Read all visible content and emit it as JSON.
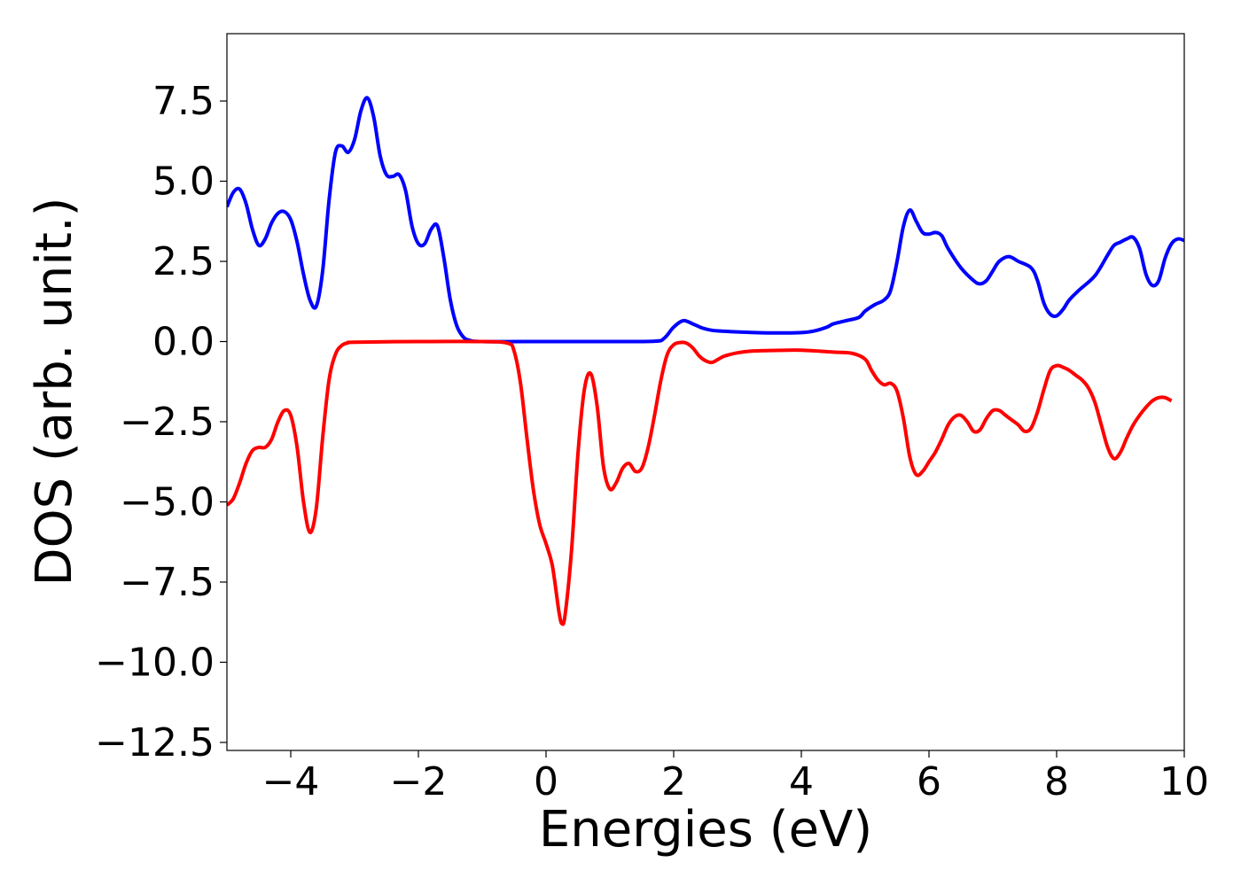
{
  "chart_data": {
    "type": "line",
    "title": "",
    "xlabel": "Energies (eV)",
    "ylabel": "DOS (arb. unit.)",
    "xlim": [
      -5,
      10
    ],
    "ylim": [
      -12.75,
      9.6
    ],
    "xticks": [
      {
        "value": -4,
        "label": "−4"
      },
      {
        "value": -2,
        "label": "−2"
      },
      {
        "value": 0,
        "label": "0"
      },
      {
        "value": 2,
        "label": "2"
      },
      {
        "value": 4,
        "label": "4"
      },
      {
        "value": 6,
        "label": "6"
      },
      {
        "value": 8,
        "label": "8"
      },
      {
        "value": 10,
        "label": "10"
      }
    ],
    "yticks": [
      {
        "value": 7.5,
        "label": "7.5"
      },
      {
        "value": 5.0,
        "label": "5.0"
      },
      {
        "value": 2.5,
        "label": "2.5"
      },
      {
        "value": 0.0,
        "label": "0.0"
      },
      {
        "value": -2.5,
        "label": "−2.5"
      },
      {
        "value": -5.0,
        "label": "−5.0"
      },
      {
        "value": -7.5,
        "label": "−7.5"
      },
      {
        "value": -10.0,
        "label": "−10.0"
      },
      {
        "value": -12.5,
        "label": "−12.5"
      }
    ],
    "grid": false,
    "legend": "none",
    "series": [
      {
        "color": "#0000ff",
        "points": [
          [
            -5.0,
            4.2
          ],
          [
            -4.9,
            4.65
          ],
          [
            -4.8,
            4.75
          ],
          [
            -4.7,
            4.3
          ],
          [
            -4.6,
            3.5
          ],
          [
            -4.5,
            3.0
          ],
          [
            -4.4,
            3.2
          ],
          [
            -4.3,
            3.7
          ],
          [
            -4.2,
            4.0
          ],
          [
            -4.1,
            4.05
          ],
          [
            -4.0,
            3.8
          ],
          [
            -3.9,
            3.1
          ],
          [
            -3.8,
            2.1
          ],
          [
            -3.7,
            1.3
          ],
          [
            -3.6,
            1.1
          ],
          [
            -3.5,
            2.2
          ],
          [
            -3.4,
            4.4
          ],
          [
            -3.3,
            5.9
          ],
          [
            -3.2,
            6.1
          ],
          [
            -3.1,
            5.9
          ],
          [
            -3.0,
            6.3
          ],
          [
            -2.9,
            7.2
          ],
          [
            -2.8,
            7.6
          ],
          [
            -2.7,
            7.0
          ],
          [
            -2.6,
            5.8
          ],
          [
            -2.5,
            5.2
          ],
          [
            -2.4,
            5.15
          ],
          [
            -2.3,
            5.2
          ],
          [
            -2.2,
            4.7
          ],
          [
            -2.1,
            3.6
          ],
          [
            -2.0,
            3.05
          ],
          [
            -1.9,
            3.05
          ],
          [
            -1.8,
            3.5
          ],
          [
            -1.7,
            3.6
          ],
          [
            -1.6,
            2.6
          ],
          [
            -1.5,
            1.3
          ],
          [
            -1.4,
            0.5
          ],
          [
            -1.3,
            0.15
          ],
          [
            -1.2,
            0.04
          ],
          [
            -1.0,
            0.0
          ],
          [
            0.0,
            0.0
          ],
          [
            1.0,
            0.0
          ],
          [
            1.7,
            0.01
          ],
          [
            1.85,
            0.1
          ],
          [
            2.0,
            0.45
          ],
          [
            2.15,
            0.65
          ],
          [
            2.3,
            0.55
          ],
          [
            2.45,
            0.42
          ],
          [
            2.6,
            0.35
          ],
          [
            2.8,
            0.32
          ],
          [
            3.0,
            0.3
          ],
          [
            3.5,
            0.27
          ],
          [
            4.0,
            0.28
          ],
          [
            4.2,
            0.33
          ],
          [
            4.4,
            0.45
          ],
          [
            4.5,
            0.55
          ],
          [
            4.7,
            0.65
          ],
          [
            4.9,
            0.75
          ],
          [
            5.0,
            0.95
          ],
          [
            5.15,
            1.15
          ],
          [
            5.3,
            1.3
          ],
          [
            5.4,
            1.6
          ],
          [
            5.5,
            2.5
          ],
          [
            5.6,
            3.6
          ],
          [
            5.7,
            4.1
          ],
          [
            5.8,
            3.75
          ],
          [
            5.9,
            3.4
          ],
          [
            6.0,
            3.35
          ],
          [
            6.1,
            3.4
          ],
          [
            6.2,
            3.3
          ],
          [
            6.3,
            2.9
          ],
          [
            6.5,
            2.3
          ],
          [
            6.7,
            1.9
          ],
          [
            6.8,
            1.8
          ],
          [
            6.9,
            1.9
          ],
          [
            7.0,
            2.2
          ],
          [
            7.1,
            2.5
          ],
          [
            7.25,
            2.65
          ],
          [
            7.4,
            2.5
          ],
          [
            7.6,
            2.3
          ],
          [
            7.7,
            1.9
          ],
          [
            7.8,
            1.2
          ],
          [
            7.9,
            0.85
          ],
          [
            8.0,
            0.8
          ],
          [
            8.1,
            1.0
          ],
          [
            8.2,
            1.3
          ],
          [
            8.35,
            1.6
          ],
          [
            8.6,
            2.05
          ],
          [
            8.8,
            2.7
          ],
          [
            8.9,
            3.0
          ],
          [
            9.0,
            3.1
          ],
          [
            9.1,
            3.2
          ],
          [
            9.2,
            3.25
          ],
          [
            9.3,
            2.9
          ],
          [
            9.4,
            2.1
          ],
          [
            9.5,
            1.75
          ],
          [
            9.6,
            1.9
          ],
          [
            9.7,
            2.6
          ],
          [
            9.8,
            3.05
          ],
          [
            9.9,
            3.2
          ],
          [
            10.0,
            3.15
          ]
        ]
      },
      {
        "color": "#ff0000",
        "points": [
          [
            -5.0,
            -5.1
          ],
          [
            -4.9,
            -4.9
          ],
          [
            -4.8,
            -4.4
          ],
          [
            -4.7,
            -3.8
          ],
          [
            -4.6,
            -3.4
          ],
          [
            -4.5,
            -3.3
          ],
          [
            -4.4,
            -3.3
          ],
          [
            -4.3,
            -3.05
          ],
          [
            -4.2,
            -2.5
          ],
          [
            -4.1,
            -2.15
          ],
          [
            -4.0,
            -2.3
          ],
          [
            -3.9,
            -3.3
          ],
          [
            -3.8,
            -5.0
          ],
          [
            -3.7,
            -5.95
          ],
          [
            -3.6,
            -5.2
          ],
          [
            -3.5,
            -3.0
          ],
          [
            -3.4,
            -1.2
          ],
          [
            -3.3,
            -0.4
          ],
          [
            -3.2,
            -0.12
          ],
          [
            -3.1,
            -0.04
          ],
          [
            -3.0,
            -0.02
          ],
          [
            -2.0,
            0.0
          ],
          [
            -1.0,
            0.0
          ],
          [
            -0.6,
            -0.05
          ],
          [
            -0.5,
            -0.3
          ],
          [
            -0.4,
            -1.3
          ],
          [
            -0.3,
            -3.0
          ],
          [
            -0.2,
            -4.6
          ],
          [
            -0.1,
            -5.7
          ],
          [
            0.0,
            -6.3
          ],
          [
            0.1,
            -7.0
          ],
          [
            0.2,
            -8.4
          ],
          [
            0.25,
            -8.8
          ],
          [
            0.3,
            -8.5
          ],
          [
            0.4,
            -6.5
          ],
          [
            0.5,
            -3.5
          ],
          [
            0.6,
            -1.5
          ],
          [
            0.7,
            -1.0
          ],
          [
            0.8,
            -2.0
          ],
          [
            0.9,
            -3.9
          ],
          [
            1.0,
            -4.6
          ],
          [
            1.1,
            -4.4
          ],
          [
            1.2,
            -3.95
          ],
          [
            1.3,
            -3.8
          ],
          [
            1.4,
            -4.05
          ],
          [
            1.5,
            -3.95
          ],
          [
            1.6,
            -3.3
          ],
          [
            1.7,
            -2.3
          ],
          [
            1.8,
            -1.2
          ],
          [
            1.9,
            -0.4
          ],
          [
            2.0,
            -0.1
          ],
          [
            2.1,
            -0.03
          ],
          [
            2.2,
            -0.05
          ],
          [
            2.3,
            -0.2
          ],
          [
            2.4,
            -0.45
          ],
          [
            2.5,
            -0.6
          ],
          [
            2.6,
            -0.65
          ],
          [
            2.7,
            -0.55
          ],
          [
            2.8,
            -0.45
          ],
          [
            3.0,
            -0.35
          ],
          [
            3.2,
            -0.3
          ],
          [
            3.5,
            -0.28
          ],
          [
            4.0,
            -0.27
          ],
          [
            4.5,
            -0.33
          ],
          [
            4.8,
            -0.37
          ],
          [
            5.0,
            -0.55
          ],
          [
            5.1,
            -0.9
          ],
          [
            5.2,
            -1.2
          ],
          [
            5.3,
            -1.35
          ],
          [
            5.4,
            -1.3
          ],
          [
            5.5,
            -1.55
          ],
          [
            5.6,
            -2.4
          ],
          [
            5.7,
            -3.6
          ],
          [
            5.8,
            -4.15
          ],
          [
            5.9,
            -4.05
          ],
          [
            6.0,
            -3.75
          ],
          [
            6.1,
            -3.45
          ],
          [
            6.2,
            -3.05
          ],
          [
            6.3,
            -2.6
          ],
          [
            6.4,
            -2.35
          ],
          [
            6.5,
            -2.3
          ],
          [
            6.6,
            -2.5
          ],
          [
            6.7,
            -2.8
          ],
          [
            6.8,
            -2.75
          ],
          [
            6.9,
            -2.4
          ],
          [
            7.0,
            -2.15
          ],
          [
            7.1,
            -2.15
          ],
          [
            7.2,
            -2.3
          ],
          [
            7.3,
            -2.45
          ],
          [
            7.4,
            -2.6
          ],
          [
            7.5,
            -2.8
          ],
          [
            7.6,
            -2.7
          ],
          [
            7.7,
            -2.2
          ],
          [
            7.8,
            -1.5
          ],
          [
            7.9,
            -0.9
          ],
          [
            8.0,
            -0.75
          ],
          [
            8.1,
            -0.8
          ],
          [
            8.2,
            -0.9
          ],
          [
            8.3,
            -1.05
          ],
          [
            8.4,
            -1.2
          ],
          [
            8.5,
            -1.45
          ],
          [
            8.6,
            -1.9
          ],
          [
            8.7,
            -2.6
          ],
          [
            8.8,
            -3.3
          ],
          [
            8.9,
            -3.65
          ],
          [
            9.0,
            -3.45
          ],
          [
            9.1,
            -3.0
          ],
          [
            9.2,
            -2.6
          ],
          [
            9.3,
            -2.3
          ],
          [
            9.4,
            -2.05
          ],
          [
            9.5,
            -1.85
          ],
          [
            9.6,
            -1.75
          ],
          [
            9.7,
            -1.75
          ],
          [
            9.8,
            -1.85
          ]
        ]
      }
    ]
  }
}
